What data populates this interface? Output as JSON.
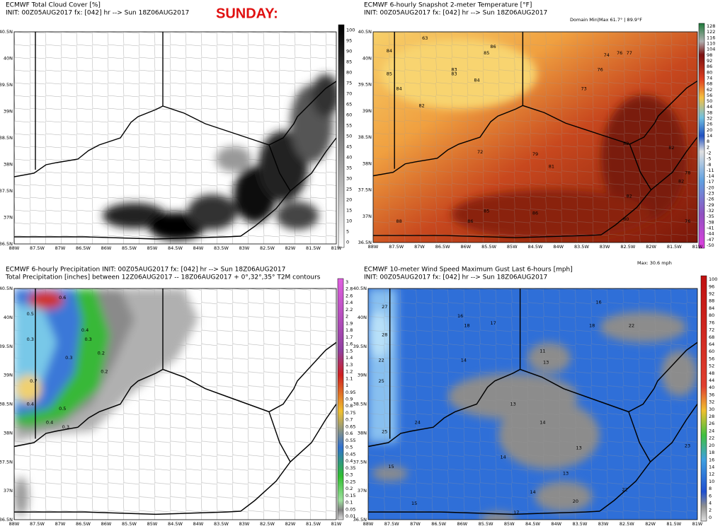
{
  "banner": "SUNDAY:",
  "axes": {
    "lat": [
      "40.5N",
      "40N",
      "39.5N",
      "39N",
      "38.5N",
      "38N",
      "37.5N",
      "37N",
      "36.5N"
    ],
    "lon": [
      "88W",
      "87.5W",
      "87W",
      "86.5W",
      "86W",
      "85.5W",
      "85W",
      "84.5W",
      "84W",
      "83.5W",
      "83W",
      "82.5W",
      "82W",
      "81.5W",
      "81W"
    ]
  },
  "panels": [
    {
      "title": "ECMWF Total Cloud Cover [%]",
      "init": "INIT: 00Z05AUG2017 fx: [042] hr --> Sun 18Z06AUG2017",
      "colorbar": [
        "100",
        "95",
        "90",
        "85",
        "80",
        "75",
        "70",
        "65",
        "60",
        "55",
        "50",
        "45",
        "40",
        "35",
        "30",
        "25",
        "20",
        "15",
        "10",
        "5",
        "0"
      ]
    },
    {
      "title": "ECMWF 6-hourly Snapshot 2-meter Temperature [°F]",
      "init": "INIT: 00Z05AUG2017 fx: [042] hr --> Sun 18Z06AUG2017",
      "note": "Domain Min|Max 61.7° | 89.9°F",
      "colorbar": [
        "128",
        "122",
        "116",
        "110",
        "104",
        "98",
        "92",
        "86",
        "80",
        "74",
        "68",
        "62",
        "56",
        "50",
        "44",
        "38",
        "32",
        "26",
        "20",
        "14",
        "8",
        "2",
        "-2",
        "-5",
        "-8",
        "-11",
        "-14",
        "-17",
        "-20",
        "-23",
        "-26",
        "-29",
        "-32",
        "-35",
        "-38",
        "-41",
        "-44",
        "-47",
        "-50"
      ],
      "map_labels": [
        "63",
        "84",
        "85",
        "85",
        "86",
        "83",
        "83",
        "84",
        "84",
        "82",
        "74",
        "76",
        "77",
        "76",
        "73",
        "72",
        "82",
        "79",
        "81",
        "85",
        "88",
        "86",
        "86",
        "82",
        "80",
        "82",
        "82",
        "78",
        "76"
      ]
    },
    {
      "title": "ECMWF 6-hourly Precipitation INIT: 00Z05AUG2017 fx: [042] hr --> Sun 18Z06AUG2017",
      "init": "Total Precipitation [inches] between 12Z06AUG2017 -- 18Z06AUG2017  + 0°,32°,35° T2M contours",
      "colorbar": [
        "3",
        "2.8",
        "2.6",
        "2.4",
        "2.2",
        "2",
        "1.9",
        "1.8",
        "1.7",
        "1.6",
        "1.5",
        "1.4",
        "1.3",
        "1.2",
        "1.1",
        "1",
        "0.95",
        "0.9",
        "0.8",
        "0.75",
        "0.7",
        "0.65",
        "0.6",
        "0.55",
        "0.5",
        "0.45",
        "0.4",
        "0.35",
        "0.3",
        "0.25",
        "0.2",
        "0.15",
        "0.1",
        "0.05",
        "0.01"
      ],
      "map_labels": [
        "0.6",
        "0.5",
        "0.3",
        "0.4",
        "0.3",
        "0.2",
        "0.3",
        "0.2",
        "0.7",
        "0.4",
        "0.5",
        "0.4",
        "0.3"
      ]
    },
    {
      "title": "ECMWF 10-meter Wind Speed Maximum Gust Last 6-hours [mph]",
      "init": "INIT: 00Z05AUG2017 fx: [042] hr --> Sun 18Z06AUG2017",
      "note": "Max: 30.6 mph",
      "colorbar": [
        "100",
        "96",
        "92",
        "88",
        "84",
        "80",
        "76",
        "72",
        "68",
        "64",
        "60",
        "56",
        "52",
        "48",
        "44",
        "40",
        "36",
        "32",
        "30",
        "28",
        "26",
        "24",
        "22",
        "20",
        "18",
        "16",
        "14",
        "12",
        "10",
        "8",
        "6",
        "4",
        "2",
        "0"
      ],
      "map_labels": [
        "27",
        "28",
        "22",
        "25",
        "24",
        "25",
        "15",
        "16",
        "18",
        "17",
        "14",
        "11",
        "13",
        "13",
        "14",
        "14",
        "13",
        "14",
        "13",
        "16",
        "18",
        "22",
        "23",
        "22",
        "20",
        "17",
        "15"
      ]
    }
  ]
}
